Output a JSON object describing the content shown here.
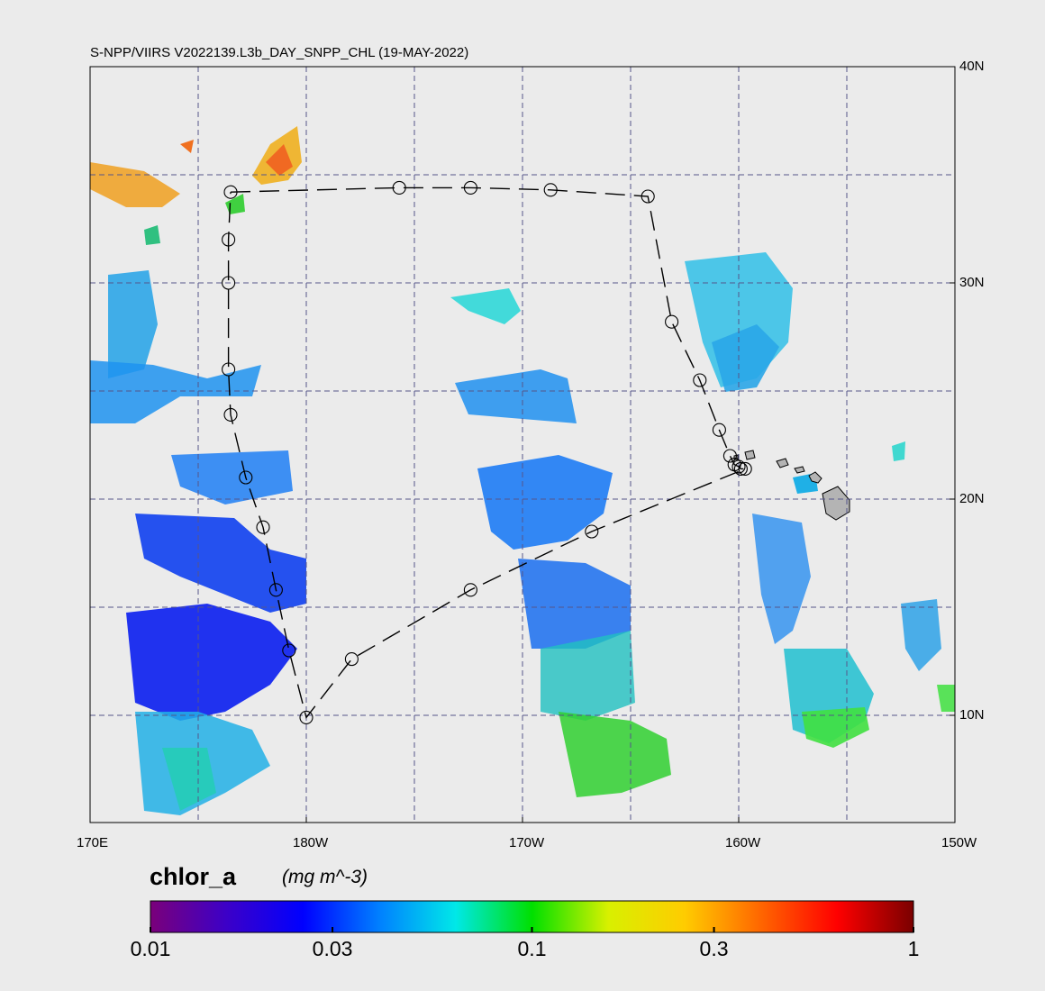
{
  "title": "S-NPP/VIIRS V2022139.L3b_DAY_SNPP_CHL (19-MAY-2022)",
  "longitude_labels": [
    "170E",
    "180W",
    "170W",
    "160W",
    "150W"
  ],
  "latitude_labels": [
    "40N",
    "30N",
    "20N",
    "10N"
  ],
  "colorbar": {
    "variable": "chlor_a",
    "units": "(mg m^-3)",
    "ticks": [
      "0.01",
      "0.03",
      "0.1",
      "0.3",
      "1"
    ],
    "colors": [
      "#7a007a",
      "#3c00c8",
      "#0000ff",
      "#0080ff",
      "#00e8e8",
      "#00e000",
      "#d8f000",
      "#ffcc00",
      "#ff6600",
      "#ff0000",
      "#7a0000"
    ]
  },
  "map": {
    "background_color": "#ebebeb",
    "grid_color": "#55558a",
    "land_color": "#b4b4b4",
    "track_stations_lonlat": [
      [
        176.5,
        34.2
      ],
      [
        184.3,
        34.4
      ],
      [
        187.6,
        34.4
      ],
      [
        191.3,
        34.3
      ],
      [
        195.8,
        34.0
      ],
      [
        196.9,
        28.2
      ],
      [
        198.2,
        25.5
      ],
      [
        199.1,
        23.2
      ],
      [
        199.6,
        22.0
      ],
      [
        199.8,
        21.6
      ],
      [
        200.0,
        21.5
      ],
      [
        200.1,
        21.4
      ],
      [
        200.3,
        21.4
      ],
      [
        193.2,
        18.5
      ],
      [
        187.6,
        15.8
      ],
      [
        182.1,
        12.6
      ],
      [
        180.0,
        9.9
      ],
      [
        179.2,
        13.0
      ],
      [
        178.6,
        15.8
      ],
      [
        178.0,
        18.7
      ],
      [
        177.2,
        21.0
      ],
      [
        176.5,
        23.9
      ],
      [
        176.4,
        26.0
      ],
      [
        176.4,
        30.0
      ],
      [
        176.4,
        32.0
      ]
    ]
  }
}
